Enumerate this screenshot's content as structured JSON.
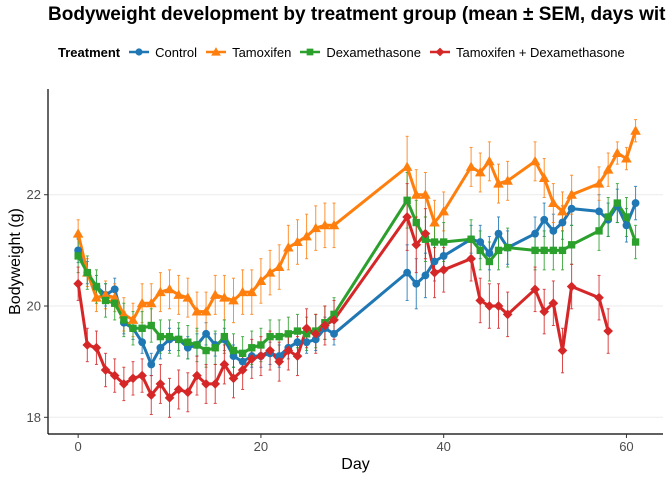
{
  "chart_data": {
    "type": "line",
    "title": "Bodyweight development by treatment group (mean ± SEM, days wit",
    "xlabel": "Day",
    "ylabel": "Bodyweight (g)",
    "legend_title": "Treatment",
    "legend_position": "top",
    "xlim": [
      -3.3,
      64
    ],
    "ylim": [
      17.7,
      23.9
    ],
    "xticks": [
      0,
      20,
      40,
      60
    ],
    "yticks": [
      18,
      20,
      22
    ],
    "grid": "horizontal",
    "series": [
      {
        "name": "Control",
        "color": "#1f77b4",
        "marker": "circle",
        "x": [
          0,
          1,
          2,
          3,
          4,
          5,
          6,
          7,
          8,
          9,
          10,
          11,
          12,
          13,
          14,
          15,
          16,
          17,
          18,
          19,
          20,
          21,
          22,
          23,
          24,
          25,
          26,
          27,
          28,
          36,
          37,
          38,
          39,
          40,
          43,
          44,
          45,
          46,
          47,
          50,
          51,
          52,
          53,
          54,
          57,
          58,
          59,
          60,
          61
        ],
        "y": [
          21.0,
          20.6,
          20.35,
          20.2,
          20.3,
          19.7,
          19.6,
          19.35,
          18.95,
          19.25,
          19.4,
          19.4,
          19.25,
          19.3,
          19.5,
          19.3,
          19.4,
          19.1,
          19.0,
          19.1,
          19.1,
          19.15,
          19.1,
          19.25,
          19.35,
          19.35,
          19.4,
          19.6,
          19.5,
          20.6,
          20.4,
          20.55,
          20.8,
          20.9,
          21.2,
          21.15,
          20.95,
          21.3,
          21.05,
          21.3,
          21.55,
          21.35,
          21.5,
          21.75,
          21.7,
          21.55,
          21.8,
          21.45,
          21.85
        ],
        "sem": [
          0.22,
          0.2,
          0.2,
          0.2,
          0.2,
          0.2,
          0.2,
          0.2,
          0.2,
          0.2,
          0.2,
          0.2,
          0.2,
          0.2,
          0.2,
          0.2,
          0.2,
          0.2,
          0.2,
          0.2,
          0.2,
          0.2,
          0.2,
          0.2,
          0.2,
          0.2,
          0.2,
          0.2,
          0.2,
          0.5,
          0.45,
          0.4,
          0.35,
          0.3,
          0.25,
          0.3,
          0.3,
          0.3,
          0.3,
          0.3,
          0.3,
          0.3,
          0.3,
          0.3,
          0.3,
          0.3,
          0.3,
          0.3,
          0.3
        ]
      },
      {
        "name": "Tamoxifen",
        "color": "#ff7f0e",
        "marker": "triangle",
        "x": [
          0,
          1,
          2,
          3,
          4,
          5,
          6,
          7,
          8,
          9,
          10,
          11,
          12,
          13,
          14,
          15,
          16,
          17,
          18,
          19,
          20,
          21,
          22,
          23,
          24,
          25,
          26,
          27,
          28,
          36,
          37,
          38,
          39,
          40,
          43,
          44,
          45,
          46,
          47,
          50,
          51,
          52,
          53,
          54,
          57,
          58,
          59,
          60,
          61
        ],
        "y": [
          21.3,
          20.6,
          20.15,
          20.2,
          20.15,
          19.85,
          19.75,
          20.05,
          20.05,
          20.25,
          20.3,
          20.2,
          20.15,
          19.9,
          19.9,
          20.2,
          20.15,
          20.1,
          20.25,
          20.25,
          20.45,
          20.6,
          20.7,
          21.05,
          21.15,
          21.25,
          21.4,
          21.45,
          21.45,
          22.5,
          22.0,
          22.0,
          21.5,
          21.7,
          22.5,
          22.4,
          22.6,
          22.2,
          22.25,
          22.6,
          22.3,
          21.85,
          21.7,
          22.0,
          22.2,
          22.45,
          22.75,
          22.65,
          23.15
        ],
        "sem": [
          0.25,
          0.25,
          0.25,
          0.25,
          0.25,
          0.3,
          0.3,
          0.35,
          0.35,
          0.35,
          0.35,
          0.35,
          0.35,
          0.35,
          0.35,
          0.35,
          0.4,
          0.4,
          0.4,
          0.4,
          0.4,
          0.4,
          0.4,
          0.4,
          0.4,
          0.4,
          0.4,
          0.4,
          0.4,
          0.55,
          0.45,
          0.4,
          0.4,
          0.35,
          0.35,
          0.35,
          0.35,
          0.35,
          0.35,
          0.35,
          0.35,
          0.35,
          0.35,
          0.35,
          0.3,
          0.3,
          0.2,
          0.2,
          0.2
        ]
      },
      {
        "name": "Dexamethasone",
        "color": "#2ca02c",
        "marker": "square",
        "x": [
          0,
          1,
          2,
          3,
          4,
          5,
          6,
          7,
          8,
          9,
          10,
          11,
          12,
          13,
          14,
          15,
          16,
          17,
          18,
          19,
          20,
          21,
          22,
          23,
          24,
          25,
          26,
          27,
          28,
          36,
          37,
          38,
          39,
          40,
          43,
          44,
          45,
          46,
          47,
          50,
          51,
          52,
          53,
          54,
          57,
          58,
          59,
          60,
          61
        ],
        "y": [
          20.9,
          20.6,
          20.35,
          20.1,
          20.05,
          19.75,
          19.6,
          19.6,
          19.65,
          19.45,
          19.45,
          19.4,
          19.35,
          19.3,
          19.2,
          19.25,
          19.45,
          19.2,
          19.15,
          19.25,
          19.3,
          19.45,
          19.45,
          19.5,
          19.55,
          19.5,
          19.55,
          19.7,
          19.85,
          21.9,
          21.5,
          21.2,
          21.15,
          21.15,
          21.2,
          21.0,
          20.8,
          21.0,
          21.05,
          21.0,
          21.0,
          21.0,
          21.0,
          21.1,
          21.35,
          21.6,
          21.85,
          21.6,
          21.15
        ],
        "sem": [
          0.3,
          0.3,
          0.3,
          0.3,
          0.3,
          0.3,
          0.3,
          0.3,
          0.3,
          0.3,
          0.3,
          0.3,
          0.3,
          0.3,
          0.3,
          0.3,
          0.3,
          0.3,
          0.3,
          0.3,
          0.3,
          0.3,
          0.3,
          0.3,
          0.3,
          0.3,
          0.3,
          0.3,
          0.3,
          0.5,
          0.4,
          0.4,
          0.35,
          0.35,
          0.35,
          0.35,
          0.35,
          0.35,
          0.35,
          0.35,
          0.35,
          0.35,
          0.35,
          0.35,
          0.35,
          0.35,
          0.35,
          0.35,
          0.3
        ]
      },
      {
        "name": "Tamoxifen + Dexamethasone",
        "color": "#d62728",
        "marker": "diamond",
        "x": [
          0,
          1,
          2,
          3,
          4,
          5,
          6,
          7,
          8,
          9,
          10,
          11,
          12,
          13,
          14,
          15,
          16,
          17,
          18,
          19,
          20,
          21,
          22,
          23,
          24,
          25,
          26,
          27,
          28,
          36,
          37,
          38,
          39,
          40,
          43,
          44,
          45,
          46,
          47,
          50,
          51,
          52,
          53,
          54,
          57,
          58
        ],
        "y": [
          20.4,
          19.3,
          19.25,
          18.85,
          18.75,
          18.6,
          18.7,
          18.75,
          18.4,
          18.6,
          18.35,
          18.5,
          18.45,
          18.75,
          18.6,
          18.6,
          18.95,
          18.7,
          18.85,
          19.05,
          19.1,
          19.2,
          19.0,
          19.2,
          19.1,
          19.6,
          19.5,
          19.65,
          19.75,
          21.6,
          21.1,
          21.3,
          20.6,
          20.65,
          20.85,
          20.1,
          20.0,
          20.0,
          19.85,
          20.3,
          19.9,
          20.05,
          19.2,
          20.35,
          20.15,
          19.55
        ],
        "sem": [
          0.3,
          0.3,
          0.3,
          0.3,
          0.3,
          0.3,
          0.3,
          0.3,
          0.35,
          0.35,
          0.35,
          0.35,
          0.35,
          0.35,
          0.35,
          0.35,
          0.35,
          0.35,
          0.35,
          0.35,
          0.35,
          0.35,
          0.35,
          0.35,
          0.35,
          0.35,
          0.35,
          0.35,
          0.35,
          0.6,
          0.5,
          0.45,
          0.45,
          0.4,
          0.4,
          0.4,
          0.4,
          0.4,
          0.4,
          0.4,
          0.4,
          0.4,
          0.4,
          0.4,
          0.4,
          0.4
        ]
      }
    ]
  }
}
